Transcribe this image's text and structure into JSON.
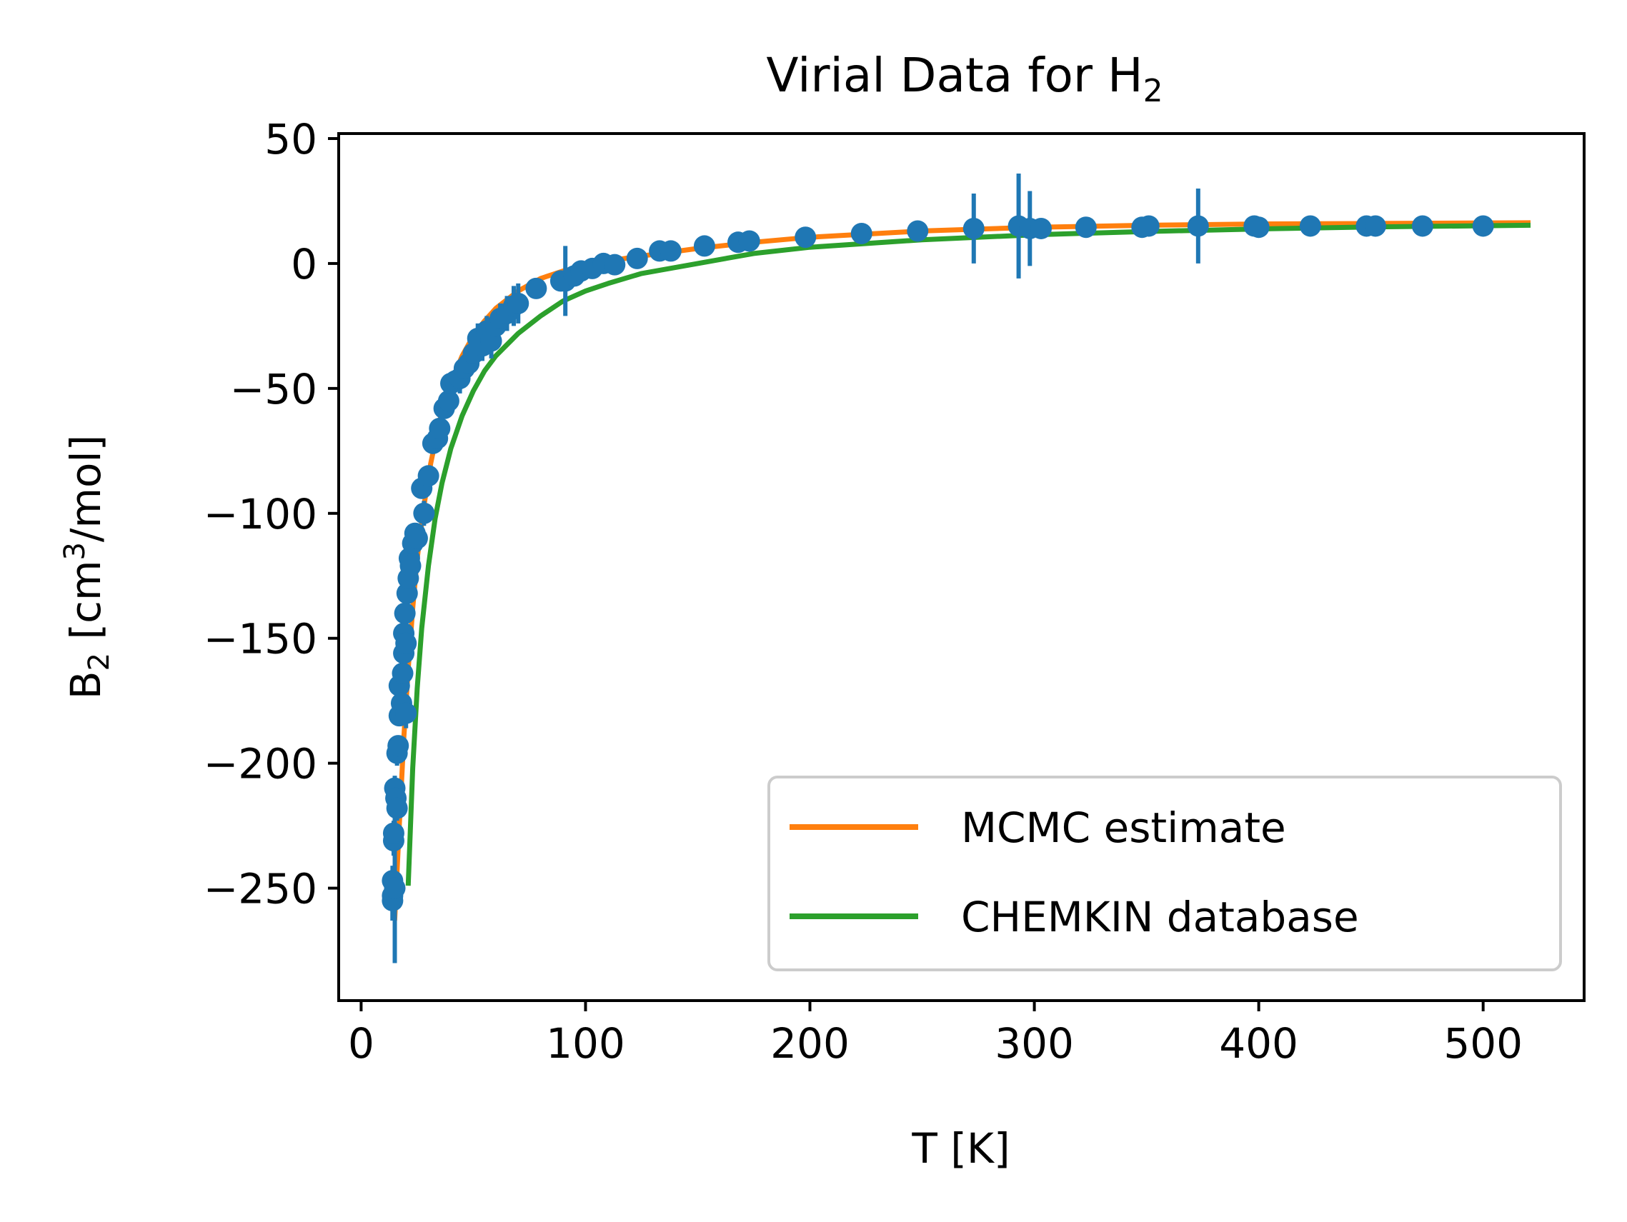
{
  "chart_data": {
    "type": "scatter",
    "title": "Virial Data for H",
    "title_subscript": "2",
    "xlabel": "T [K]",
    "ylabel_prefix": "B",
    "ylabel_subscript": "2",
    "ylabel_units": " [cm",
    "ylabel_superscript": "3",
    "ylabel_suffix": "/mol]",
    "xlim": [
      -10,
      545
    ],
    "ylim": [
      -295,
      52
    ],
    "xticks": [
      {
        "value": 0,
        "label": "0"
      },
      {
        "value": 100,
        "label": "100"
      },
      {
        "value": 200,
        "label": "200"
      },
      {
        "value": 300,
        "label": "300"
      },
      {
        "value": 400,
        "label": "400"
      },
      {
        "value": 500,
        "label": "500"
      }
    ],
    "yticks": [
      {
        "value": 50,
        "label": "50"
      },
      {
        "value": 0,
        "label": "0"
      },
      {
        "value": -50,
        "label": "−50"
      },
      {
        "value": -100,
        "label": "−100"
      },
      {
        "value": -150,
        "label": "−150"
      },
      {
        "value": -200,
        "label": "−200"
      },
      {
        "value": -250,
        "label": "−250"
      }
    ],
    "grid": false,
    "legend_position": "lower-right",
    "colors": {
      "data": "#1f77b4",
      "mcmc": "#ff7f0e",
      "chemkin": "#2ca02c"
    },
    "series": [
      {
        "name": "MCMC estimate",
        "kind": "line",
        "color": "#ff7f0e",
        "points": [
          [
            15,
            -262
          ],
          [
            17,
            -225
          ],
          [
            19,
            -190
          ],
          [
            21,
            -162
          ],
          [
            23,
            -138
          ],
          [
            25,
            -118
          ],
          [
            28,
            -97
          ],
          [
            31,
            -80
          ],
          [
            35,
            -63
          ],
          [
            40,
            -48
          ],
          [
            45,
            -37
          ],
          [
            50,
            -29
          ],
          [
            55,
            -23
          ],
          [
            60,
            -18
          ],
          [
            70,
            -11
          ],
          [
            80,
            -6
          ],
          [
            90,
            -3
          ],
          [
            100,
            -1
          ],
          [
            110,
            1
          ],
          [
            125,
            3
          ],
          [
            150,
            6
          ],
          [
            175,
            8.5
          ],
          [
            200,
            10.5
          ],
          [
            250,
            13
          ],
          [
            300,
            14.5
          ],
          [
            350,
            15.3
          ],
          [
            400,
            15.8
          ],
          [
            450,
            16
          ],
          [
            520,
            16.3
          ]
        ]
      },
      {
        "name": "CHEMKIN database",
        "kind": "line",
        "color": "#2ca02c",
        "points": [
          [
            21,
            -248
          ],
          [
            22,
            -225
          ],
          [
            23,
            -202
          ],
          [
            25,
            -170
          ],
          [
            27,
            -146
          ],
          [
            30,
            -121
          ],
          [
            33,
            -102
          ],
          [
            36,
            -88
          ],
          [
            40,
            -74
          ],
          [
            45,
            -61
          ],
          [
            50,
            -51
          ],
          [
            55,
            -43
          ],
          [
            60,
            -37
          ],
          [
            70,
            -28
          ],
          [
            80,
            -21
          ],
          [
            90,
            -15
          ],
          [
            100,
            -11
          ],
          [
            110,
            -8
          ],
          [
            125,
            -4
          ],
          [
            150,
            0
          ],
          [
            175,
            4
          ],
          [
            200,
            6.5
          ],
          [
            250,
            9.5
          ],
          [
            300,
            11.5
          ],
          [
            350,
            12.8
          ],
          [
            400,
            13.8
          ],
          [
            450,
            14.6
          ],
          [
            520,
            15.3
          ]
        ]
      },
      {
        "name": "",
        "kind": "errorbar",
        "color": "#1f77b4",
        "points": [
          {
            "x": 14,
            "y": -255,
            "err": 8
          },
          {
            "x": 14,
            "y": -253,
            "err": 10
          },
          {
            "x": 14,
            "y": -247,
            "err": 6
          },
          {
            "x": 14.5,
            "y": -231,
            "err": 6
          },
          {
            "x": 14.5,
            "y": -228,
            "err": 5
          },
          {
            "x": 15,
            "y": -250,
            "err": 30
          },
          {
            "x": 15,
            "y": -210,
            "err": 5
          },
          {
            "x": 15.5,
            "y": -214,
            "err": 6
          },
          {
            "x": 16,
            "y": -218,
            "err": 5
          },
          {
            "x": 16,
            "y": -196,
            "err": 5
          },
          {
            "x": 16.5,
            "y": -193,
            "err": 4
          },
          {
            "x": 17,
            "y": -181,
            "err": 4
          },
          {
            "x": 17,
            "y": -169,
            "err": 4
          },
          {
            "x": 18,
            "y": -176,
            "err": 5
          },
          {
            "x": 18.5,
            "y": -164,
            "err": 4
          },
          {
            "x": 19,
            "y": -156,
            "err": 4
          },
          {
            "x": 19,
            "y": -148,
            "err": 4
          },
          {
            "x": 19.5,
            "y": -140,
            "err": 3
          },
          {
            "x": 20,
            "y": -152,
            "err": 5
          },
          {
            "x": 20,
            "y": -180,
            "err": 6
          },
          {
            "x": 20.5,
            "y": -132,
            "err": 3
          },
          {
            "x": 21,
            "y": -126,
            "err": 3
          },
          {
            "x": 21.5,
            "y": -118,
            "err": 3
          },
          {
            "x": 22,
            "y": -121,
            "err": 3
          },
          {
            "x": 23,
            "y": -112,
            "err": 3
          },
          {
            "x": 24,
            "y": -108,
            "err": 3
          },
          {
            "x": 25,
            "y": -110,
            "err": 3
          },
          {
            "x": 27,
            "y": -90,
            "err": 3
          },
          {
            "x": 28,
            "y": -100,
            "err": 5
          },
          {
            "x": 30,
            "y": -85,
            "err": 4
          },
          {
            "x": 32,
            "y": -72,
            "err": 3
          },
          {
            "x": 34,
            "y": -70,
            "err": 4
          },
          {
            "x": 35,
            "y": -66,
            "err": 4
          },
          {
            "x": 37,
            "y": -58,
            "err": 3
          },
          {
            "x": 39,
            "y": -55,
            "err": 3
          },
          {
            "x": 40,
            "y": -48,
            "err": 4
          },
          {
            "x": 42,
            "y": -47,
            "err": 4
          },
          {
            "x": 44,
            "y": -46,
            "err": 6
          },
          {
            "x": 46,
            "y": -42,
            "err": 5
          },
          {
            "x": 48,
            "y": -40,
            "err": 5
          },
          {
            "x": 50,
            "y": -36,
            "err": 5
          },
          {
            "x": 52,
            "y": -30,
            "err": 6
          },
          {
            "x": 54,
            "y": -33,
            "err": 6
          },
          {
            "x": 56,
            "y": -27,
            "err": 6
          },
          {
            "x": 58,
            "y": -31,
            "err": 7
          },
          {
            "x": 60,
            "y": -25,
            "err": 6
          },
          {
            "x": 62,
            "y": -22,
            "err": 6
          },
          {
            "x": 65,
            "y": -20,
            "err": 7
          },
          {
            "x": 68,
            "y": -17,
            "err": 8
          },
          {
            "x": 70,
            "y": -16,
            "err": 8
          },
          {
            "x": 78,
            "y": -10,
            "err": 3
          },
          {
            "x": 89,
            "y": -7,
            "err": 4
          },
          {
            "x": 91,
            "y": -7,
            "err": 14
          },
          {
            "x": 95,
            "y": -5,
            "err": 3
          },
          {
            "x": 98,
            "y": -3,
            "err": 2
          },
          {
            "x": 103,
            "y": -2,
            "err": 2
          },
          {
            "x": 108,
            "y": 0,
            "err": 2
          },
          {
            "x": 113,
            "y": -0.5,
            "err": 2
          },
          {
            "x": 123,
            "y": 2,
            "err": 2
          },
          {
            "x": 133,
            "y": 5,
            "err": 2
          },
          {
            "x": 138,
            "y": 5,
            "err": 2
          },
          {
            "x": 153,
            "y": 7,
            "err": 2
          },
          {
            "x": 168,
            "y": 8.5,
            "err": 2
          },
          {
            "x": 173,
            "y": 9,
            "err": 2
          },
          {
            "x": 198,
            "y": 10.5,
            "err": 2
          },
          {
            "x": 223,
            "y": 12,
            "err": 2
          },
          {
            "x": 248,
            "y": 13,
            "err": 2
          },
          {
            "x": 273,
            "y": 14,
            "err": 14
          },
          {
            "x": 293,
            "y": 15,
            "err": 21
          },
          {
            "x": 298,
            "y": 14,
            "err": 15
          },
          {
            "x": 303,
            "y": 14,
            "err": 2
          },
          {
            "x": 323,
            "y": 14.5,
            "err": 2
          },
          {
            "x": 348,
            "y": 14.5,
            "err": 2
          },
          {
            "x": 351,
            "y": 15,
            "err": 2
          },
          {
            "x": 373,
            "y": 15,
            "err": 15
          },
          {
            "x": 398,
            "y": 15,
            "err": 2
          },
          {
            "x": 400,
            "y": 14.5,
            "err": 2
          },
          {
            "x": 423,
            "y": 15,
            "err": 2
          },
          {
            "x": 448,
            "y": 15,
            "err": 2
          },
          {
            "x": 452,
            "y": 15,
            "err": 2
          },
          {
            "x": 473,
            "y": 15,
            "err": 2
          },
          {
            "x": 500,
            "y": 15,
            "err": 2
          }
        ]
      }
    ],
    "legend": [
      {
        "label": "MCMC estimate",
        "color": "#ff7f0e"
      },
      {
        "label": "CHEMKIN database",
        "color": "#2ca02c"
      }
    ]
  }
}
